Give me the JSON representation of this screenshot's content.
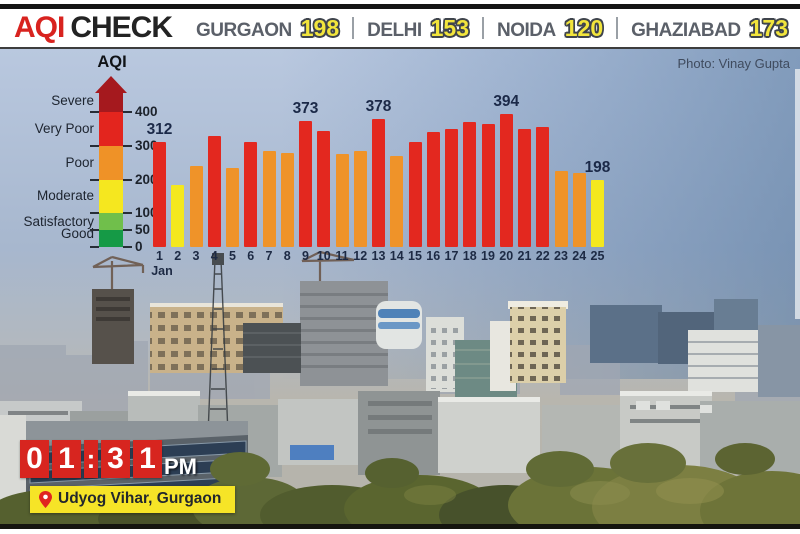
{
  "header": {
    "brand": {
      "primary": "AQI",
      "secondary": "CHECK"
    },
    "cities": [
      {
        "name": "GURGAON",
        "value": "198"
      },
      {
        "name": "DELHI",
        "value": "153"
      },
      {
        "name": "NOIDA",
        "value": "120"
      },
      {
        "name": "GHAZIABAD",
        "value": "173"
      }
    ]
  },
  "photo_credit": "Photo: Vinay Gupta",
  "legend": {
    "title": "AQI",
    "bands": [
      {
        "label": "Severe",
        "from": 400,
        "to": 455,
        "color": "#a5191e"
      },
      {
        "label": "Very Poor",
        "from": 300,
        "to": 400,
        "color": "#e3251e"
      },
      {
        "label": "Poor",
        "from": 200,
        "to": 300,
        "color": "#ef9227"
      },
      {
        "label": "Moderate",
        "from": 100,
        "to": 200,
        "color": "#f5e71f"
      },
      {
        "label": "Satisfactory",
        "from": 50,
        "to": 100,
        "color": "#70bf4b"
      },
      {
        "label": "Good",
        "from": 0,
        "to": 50,
        "color": "#159a46"
      }
    ],
    "ticks": [
      400,
      300,
      200,
      100,
      50,
      0
    ]
  },
  "chart_data": {
    "type": "bar",
    "x_label_month": "Jan",
    "categories": [
      "1",
      "2",
      "3",
      "4",
      "5",
      "6",
      "7",
      "8",
      "9",
      "10",
      "11",
      "12",
      "13",
      "14",
      "15",
      "16",
      "17",
      "18",
      "19",
      "20",
      "21",
      "22",
      "23",
      "24",
      "25"
    ],
    "values": [
      312,
      185,
      240,
      330,
      235,
      310,
      285,
      280,
      373,
      345,
      275,
      285,
      378,
      270,
      310,
      340,
      350,
      370,
      365,
      394,
      350,
      355,
      225,
      220,
      198
    ],
    "labeled_points": [
      {
        "day": "1",
        "value": 312
      },
      {
        "day": "9",
        "value": 373
      },
      {
        "day": "13",
        "value": 378
      },
      {
        "day": "20",
        "value": 394
      },
      {
        "day": "25",
        "value": 198
      }
    ],
    "ylim": [
      0,
      460
    ],
    "y_ticks": [
      400,
      300,
      200,
      100,
      50,
      0
    ],
    "bar_colors": {
      "red_300_plus": "#e3281f",
      "orange_200_to_299": "#ef9329",
      "yellow_below_200": "#f4e81e"
    }
  },
  "clock": {
    "digits": [
      "0",
      "1",
      ":",
      "3",
      "1"
    ],
    "meridiem": "PM"
  },
  "location": "Udyog Vihar, Gurgaon",
  "accent_colors": {
    "brand_red": "#d8231f",
    "city_value_yellow": "#f2e53c",
    "clock_red": "#d7251f",
    "location_yellow": "#f6e427"
  }
}
